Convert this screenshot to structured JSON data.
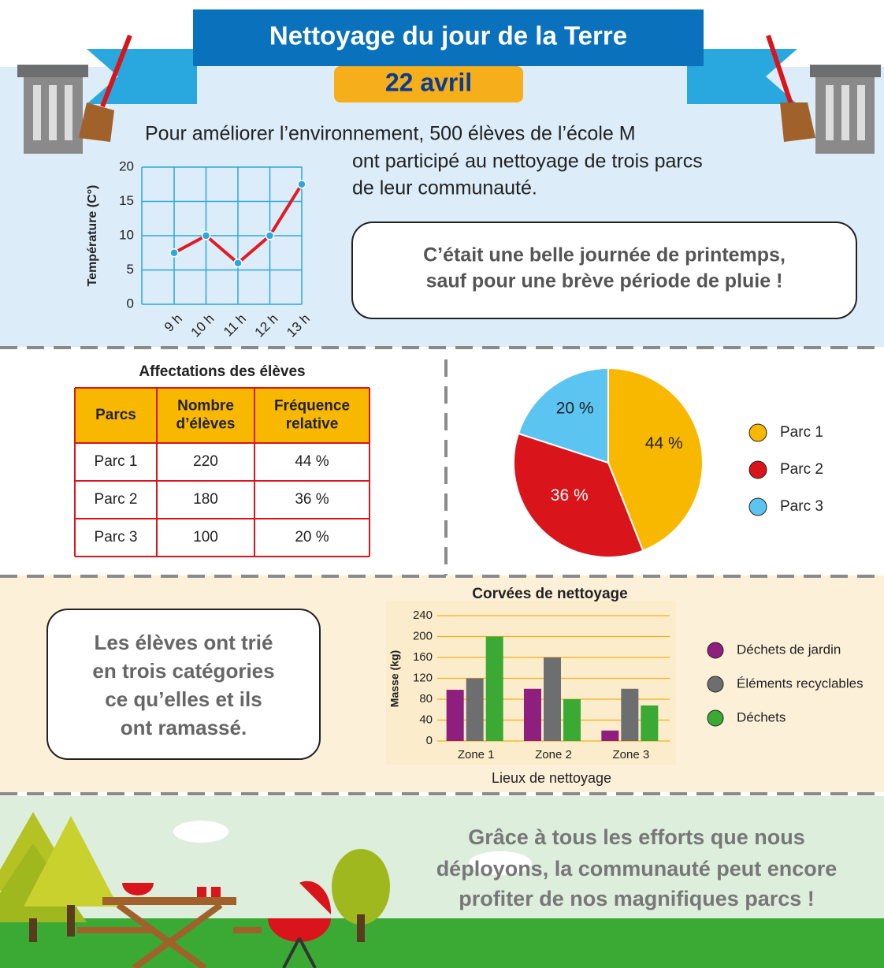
{
  "header": {
    "title": "Nettoyage du jour de la Terre",
    "date": "22 avril"
  },
  "intro": [
    "Pour améliorer l’environnement, 500 élèves de l’école M",
    "ont participé au nettoyage de trois parcs",
    "de leur communauté."
  ],
  "weather_note": [
    "C’était une belle journée de printemps,",
    "sauf pour une brève période de pluie !"
  ],
  "table": {
    "title": "Affectations des élèves",
    "header": [
      [
        "Parcs"
      ],
      [
        "Nombre",
        "d’élèves"
      ],
      [
        "Fréquence",
        "relative"
      ]
    ],
    "rows": [
      [
        "Parc 1",
        220,
        "44 %"
      ],
      [
        "Parc 2",
        180,
        "36 %"
      ],
      [
        "Parc 3",
        100,
        "20 %"
      ]
    ]
  },
  "sorting_note": [
    "Les élèves ont trié",
    "en trois catégories",
    "ce qu’elles et ils",
    "ont ramassé."
  ],
  "closing_note": [
    "Grâce à tous les efforts que nous",
    "déployons, la communauté peut encore",
    "profiter de nos magnifiques parcs !"
  ],
  "chart_data": [
    {
      "type": "line",
      "y_label": "Température (C°)",
      "categories": [
        "9 h",
        "10 h",
        "11 h",
        "12 h",
        "13 h"
      ],
      "values": [
        7.5,
        10,
        6,
        10,
        17.5
      ],
      "ylim": [
        0,
        20
      ],
      "yticks": [
        0,
        5,
        10,
        15,
        20
      ],
      "color": "#e01b24",
      "marker_color": "#29a8e0",
      "grid": true
    },
    {
      "type": "pie",
      "categories": [
        "Parc 1",
        "Parc 2",
        "Parc 3"
      ],
      "values": [
        44,
        36,
        20
      ],
      "value_labels": [
        "44 %",
        "36 %",
        "20 %"
      ],
      "colors": [
        "#f9b800",
        "#d9141b",
        "#5bc4f1"
      ],
      "legend": "right"
    },
    {
      "type": "bar",
      "title": "Corvées de nettoyage",
      "x_label": "Lieux de nettoyage",
      "y_label": "Masse (kg)",
      "categories": [
        "Zone 1",
        "Zone 2",
        "Zone 3"
      ],
      "series": [
        {
          "name": "Déchets de jardin",
          "color": "#8e1f7f",
          "values": [
            98,
            100,
            20
          ]
        },
        {
          "name": "Éléments recyclables",
          "color": "#6d6e70",
          "values": [
            120,
            160,
            100
          ]
        },
        {
          "name": "Déchets",
          "color": "#3aaa35",
          "values": [
            200,
            80,
            68
          ]
        }
      ],
      "ylim": [
        0,
        240
      ],
      "yticks": [
        0,
        40,
        80,
        120,
        160,
        200,
        240
      ],
      "grid": true,
      "legend": "right"
    }
  ]
}
